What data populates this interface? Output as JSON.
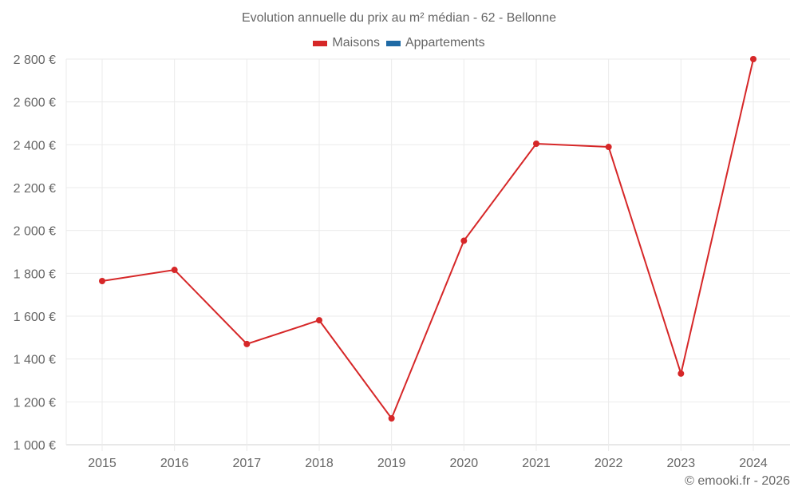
{
  "chart_data": {
    "type": "line",
    "title": "Evolution annuelle du prix au m² médian - 62 - Bellonne",
    "xlabel": "",
    "ylabel": "",
    "categories": [
      "2015",
      "2016",
      "2017",
      "2018",
      "2019",
      "2020",
      "2021",
      "2022",
      "2023",
      "2024"
    ],
    "series": [
      {
        "name": "Maisons",
        "color": "#d62728",
        "values": [
          1764,
          1816,
          1470,
          1581,
          1123,
          1952,
          2405,
          2390,
          1332,
          2800
        ]
      },
      {
        "name": "Appartements",
        "color": "#1f6aa5",
        "values": []
      }
    ],
    "ylim": [
      1000,
      2800
    ],
    "yticks": [
      1000,
      1200,
      1400,
      1600,
      1800,
      2000,
      2200,
      2400,
      2600,
      2800
    ],
    "ytick_labels": [
      "1 000 €",
      "1 200 €",
      "1 400 €",
      "1 600 €",
      "1 800 €",
      "2 000 €",
      "2 200 €",
      "2 400 €",
      "2 600 €",
      "2 800 €"
    ],
    "grid": true,
    "legend_position": "top"
  },
  "legend": [
    {
      "label": "Maisons",
      "color": "#d62728"
    },
    {
      "label": "Appartements",
      "color": "#1f6aa5"
    }
  ],
  "credit": "© emooki.fr - 2026"
}
